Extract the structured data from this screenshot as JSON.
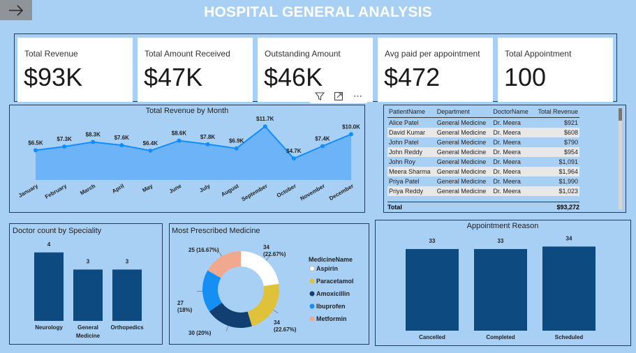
{
  "page": {
    "title": "HOSPITAL GENERAL ANALYSIS"
  },
  "nav": {
    "back_icon": "arrow-right-icon"
  },
  "kpis": [
    {
      "label": "Total Revenue",
      "value": "$93K"
    },
    {
      "label": "Total Amount Received",
      "value": "$47K"
    },
    {
      "label": "Outstanding Amount",
      "value": "$46K"
    },
    {
      "label": "Avg paid per appointment",
      "value": "$472"
    },
    {
      "label": "Total Appointment",
      "value": "100"
    }
  ],
  "visual_header": {
    "icons": [
      "filter-icon",
      "focus-mode-icon",
      "more-options-icon"
    ],
    "more_glyph": "⋯"
  },
  "patients_table": {
    "headers": [
      "PatientName",
      "Department",
      "DoctorName",
      "Total Revenue"
    ],
    "rows": [
      [
        "Alice Patel",
        "General Medicine",
        "Dr. Meera",
        "$921"
      ],
      [
        "David Kumar",
        "General Medicine",
        "Dr. Meera",
        "$608"
      ],
      [
        "John Patel",
        "General Medicine",
        "Dr. Meera",
        "$790"
      ],
      [
        "John Reddy",
        "General Medicine",
        "Dr. Meera",
        "$954"
      ],
      [
        "John Roy",
        "General Medicine",
        "Dr. Meera",
        "$1,091"
      ],
      [
        "Meera Sharma",
        "General Medicine",
        "Dr. Meera",
        "$1,964"
      ],
      [
        "Priya Patel",
        "General Medicine",
        "Dr. Meera",
        "$1,990"
      ],
      [
        "Priya Reddy",
        "General Medicine",
        "Dr. Meera",
        "$1,023"
      ]
    ],
    "total_label": "Total",
    "total_value": "$93,272"
  },
  "chart_data": [
    {
      "type": "area",
      "title": "Total Revenue by Month",
      "categories": [
        "January",
        "February",
        "March",
        "April",
        "May",
        "June",
        "July",
        "August",
        "September",
        "October",
        "November",
        "December"
      ],
      "values": [
        6.5,
        7.3,
        8.3,
        7.6,
        6.4,
        8.6,
        7.8,
        6.9,
        11.7,
        4.7,
        7.4,
        10.0
      ],
      "data_labels": [
        "$6.5K",
        "$7.3K",
        "$8.3K",
        "$7.6K",
        "$6.4K",
        "$8.6K",
        "$7.8K",
        "$6.9K",
        "$11.7K",
        "$4.7K",
        "$7.4K",
        "$10.0K"
      ],
      "ylim": [
        0,
        12.5
      ],
      "color": "#118dff",
      "fill": "#63aef7",
      "grid": false
    },
    {
      "type": "bar",
      "title": "Doctor count by Speciality",
      "categories": [
        "Neurology",
        "General Medicine",
        "Orthopedics"
      ],
      "category_lines": [
        [
          "Neurology"
        ],
        [
          "General",
          "Medicine"
        ],
        [
          "Orthopedics"
        ]
      ],
      "values": [
        4,
        3,
        3
      ],
      "ylim": [
        0,
        4.4
      ],
      "color": "#0d4a80"
    },
    {
      "type": "pie",
      "title": "Most Prescribed Medicine",
      "legend_title": "MedicineName",
      "legend_position": "right",
      "slices": [
        {
          "name": "Aspirin",
          "value": 34,
          "label_lines": [
            "34",
            "(22.67%)"
          ],
          "color": "#ffffff"
        },
        {
          "name": "Paracetamol",
          "value": 34,
          "label_lines": [
            "34",
            "(22.67%)"
          ],
          "color": "#e0c13a"
        },
        {
          "name": "Amoxicillin",
          "value": 30,
          "label_lines": [
            "30 (20%)"
          ],
          "color": "#123f72"
        },
        {
          "name": "Ibuprofen",
          "value": 27,
          "label_lines": [
            "27",
            "(18%)"
          ],
          "color": "#168ff5"
        },
        {
          "name": "Metformin",
          "value": 25,
          "label_lines": [
            "25 (16.67%)"
          ],
          "color": "#f0a98e"
        }
      ]
    },
    {
      "type": "bar",
      "title": "Appointment Reason",
      "categories": [
        "Cancelled",
        "Completed",
        "Scheduled"
      ],
      "values": [
        33,
        33,
        34
      ],
      "ylim": [
        0,
        35.8
      ],
      "color": "#0d4a80"
    }
  ]
}
